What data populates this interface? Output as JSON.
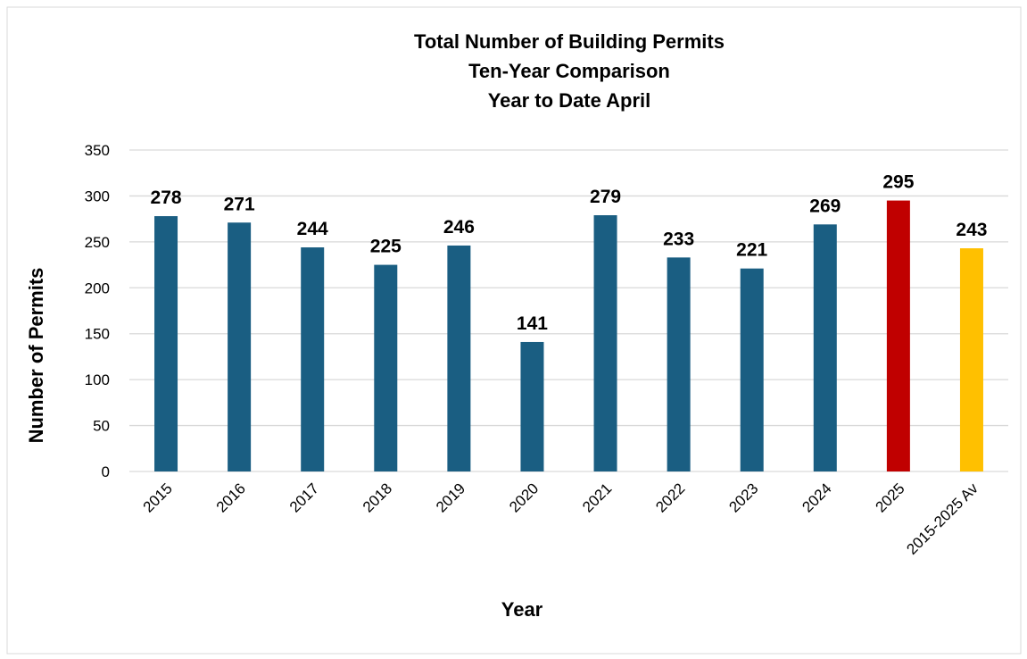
{
  "chart_data": {
    "type": "bar",
    "title": [
      "Total Number of Building Permits",
      "Ten-Year Comparison",
      "Year to Date April"
    ],
    "x_label": "Year",
    "y_label": "Number of Permits",
    "categories": [
      "2015",
      "2016",
      "2017",
      "2018",
      "2019",
      "2020",
      "2021",
      "2022",
      "2023",
      "2024",
      "2025",
      "2015-2025 Av"
    ],
    "values": [
      278,
      271,
      244,
      225,
      246,
      141,
      279,
      233,
      221,
      269,
      295,
      243
    ],
    "colors": [
      "#1a5e82",
      "#1a5e82",
      "#1a5e82",
      "#1a5e82",
      "#1a5e82",
      "#1a5e82",
      "#1a5e82",
      "#1a5e82",
      "#1a5e82",
      "#1a5e82",
      "#c00000",
      "#ffc000"
    ],
    "ylim": [
      0,
      350
    ],
    "yticks": [
      0,
      50,
      100,
      150,
      200,
      250,
      300,
      350
    ],
    "grid": true
  }
}
